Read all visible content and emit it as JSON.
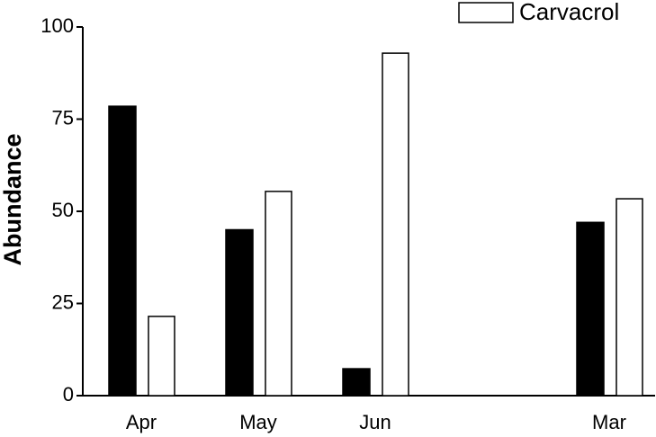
{
  "chart_data": {
    "type": "bar",
    "y_label": "Abundance",
    "categories": [
      "Apr",
      "May",
      "Jun",
      null,
      "Mar"
    ],
    "series": [
      {
        "color": "#000000",
        "values": [
          78.5,
          45,
          7.3,
          null,
          47
        ]
      },
      {
        "name": "Carvacrol",
        "color": "#ffffff",
        "values": [
          21.5,
          55.4,
          92.9,
          null,
          53.4
        ]
      }
    ],
    "ylim": [
      0,
      100
    ],
    "yticks": [
      0,
      25,
      50,
      75,
      100
    ],
    "grid": false,
    "legend": "top-right"
  }
}
